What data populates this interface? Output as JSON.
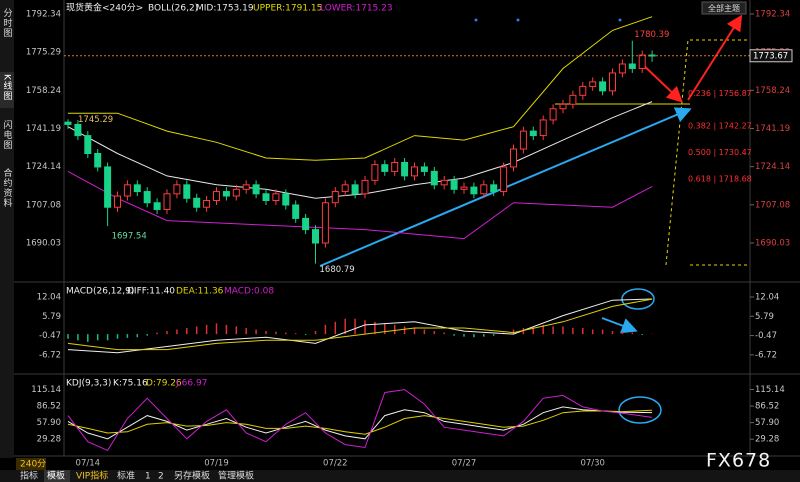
{
  "sidebar": [
    "分时图",
    "K线图",
    "闪电图",
    "合约资料"
  ],
  "period": "240分",
  "toolbar": [
    "指标",
    "模板",
    "VIP指标",
    "标准",
    "1",
    "2",
    "另存模板",
    "管理模板"
  ],
  "theme_button": "全部主题",
  "watermark": "FX678",
  "chart_data": [
    {
      "type": "candlestick",
      "title": "现货黄金<240分>",
      "indicator": "BOLL(26,2)",
      "categories": [
        null,
        null,
        "07/14",
        null,
        null,
        null,
        null,
        null,
        null,
        null,
        null,
        null,
        null,
        null,
        null,
        "07/19",
        null,
        null,
        null,
        null,
        null,
        null,
        null,
        null,
        null,
        null,
        null,
        "07/22",
        null,
        null,
        null,
        null,
        null,
        null,
        null,
        null,
        null,
        null,
        null,
        null,
        "07/27",
        null,
        null,
        null,
        null,
        null,
        null,
        null,
        null,
        null,
        null,
        null,
        null,
        "07/30",
        null,
        null,
        null,
        null,
        null,
        null
      ],
      "open": [
        1744,
        1743,
        1738,
        1730,
        1724,
        1706,
        1711,
        1716,
        1713,
        1708,
        1705,
        1712,
        1716,
        1710,
        1706,
        1709,
        1713,
        1711,
        1714,
        1716,
        1712,
        1709,
        1712,
        1707,
        1701,
        1696,
        1690,
        1708,
        1713,
        1716,
        1712,
        1718,
        1725,
        1722,
        1726,
        1720,
        1724,
        1722,
        1716,
        1718,
        1714,
        1715,
        1712,
        1716,
        1713,
        1724,
        1732,
        1740,
        1738,
        1745,
        1750,
        1752,
        1756,
        1760,
        1762,
        1758,
        1766,
        1770,
        1768,
        1774
      ],
      "high": [
        1745.29,
        1745,
        1740,
        1732,
        1726,
        1713,
        1718,
        1718,
        1715,
        1710,
        1714,
        1718,
        1718,
        1712,
        1711,
        1715,
        1715,
        1716,
        1718,
        1718,
        1714,
        1714,
        1714,
        1709,
        1703,
        1698,
        1710,
        1715,
        1718,
        1718,
        1720,
        1727,
        1727,
        1728,
        1728,
        1726,
        1726,
        1724,
        1720,
        1720,
        1717,
        1717,
        1718,
        1718,
        1726,
        1734,
        1742,
        1742,
        1747,
        1752,
        1754,
        1758,
        1762,
        1764,
        1764,
        1768,
        1772,
        1780.39,
        1776,
        1776
      ],
      "low": [
        1741,
        1736,
        1728,
        1722,
        1697.54,
        1704,
        1709,
        1711,
        1706,
        1703,
        1703,
        1710,
        1708,
        1704,
        1704,
        1707,
        1709,
        1709,
        1712,
        1710,
        1707,
        1707,
        1705,
        1699,
        1694,
        1680.79,
        1688,
        1706,
        1711,
        1710,
        1710,
        1716,
        1720,
        1720,
        1718,
        1718,
        1720,
        1714,
        1714,
        1712,
        1712,
        1710,
        1710,
        1711,
        1711,
        1722,
        1730,
        1736,
        1736,
        1743,
        1748,
        1750,
        1754,
        1758,
        1756,
        1756,
        1764,
        1766,
        1766,
        1771
      ],
      "close": [
        1743,
        1738,
        1730,
        1724,
        1706,
        1711,
        1716,
        1713,
        1708,
        1705,
        1712,
        1716,
        1710,
        1706,
        1709,
        1713,
        1711,
        1714,
        1716,
        1712,
        1709,
        1712,
        1707,
        1701,
        1696,
        1690,
        1708,
        1713,
        1716,
        1712,
        1718,
        1725,
        1722,
        1726,
        1720,
        1724,
        1722,
        1716,
        1718,
        1714,
        1715,
        1712,
        1716,
        1713,
        1724,
        1732,
        1740,
        1738,
        1745,
        1750,
        1752,
        1756,
        1760,
        1762,
        1758,
        1766,
        1770,
        1768,
        1774,
        1773.67
      ],
      "up_color": "#ff3b3b",
      "down_color": "#19d38a",
      "ylim": [
        1673.48,
        1797.25
      ],
      "yticks": [
        1792.34,
        1775.29,
        1758.24,
        1741.19,
        1724.14,
        1707.08,
        1690.03
      ],
      "x": [
        0,
        5,
        10,
        15,
        20,
        25,
        30,
        35,
        40,
        45,
        50,
        55,
        59
      ],
      "series": [
        {
          "label": "MID:1753.19",
          "color": "#e8e8e8",
          "values": [
            1742,
            1730,
            1720,
            1716,
            1714,
            1710,
            1712,
            1716,
            1719,
            1726,
            1736,
            1746,
            1753.19
          ]
        },
        {
          "label": "UPPER:1791.15",
          "color": "#e0d800",
          "values": [
            1748,
            1748,
            1740,
            1735,
            1728,
            1727,
            1728,
            1738,
            1736,
            1742,
            1768,
            1785,
            1791.15
          ]
        },
        {
          "label": "LOWER:1715.23",
          "color": "#d020d0",
          "values": [
            1722,
            1710,
            1700,
            1699,
            1698,
            1697,
            1696,
            1694,
            1692,
            1708,
            1707,
            1706,
            1715.23
          ]
        }
      ],
      "fib_levels": [
        {
          "value": 1756.87,
          "label": "0.236 | 1756.87"
        },
        {
          "value": 1742.27,
          "label": "0.382 | 1742.27"
        },
        {
          "value": 1730.47,
          "label": "0.500 | 1730.47"
        },
        {
          "value": 1718.68,
          "label": "0.618 | 1718.68"
        }
      ]
    },
    {
      "type": "macd",
      "title": "MACD(26,12,9)",
      "ylim": [
        -12.27,
        15.6
      ],
      "yticks": [
        12.04,
        5.79,
        -0.47,
        -6.72
      ],
      "histogram": {
        "label": "MACD:0.08",
        "up_color": "#e03030",
        "down_color": "#19c080",
        "values": [
          -1.5,
          -2,
          -2.5,
          -2,
          -2,
          -1.5,
          -1.2,
          -1,
          -0.5,
          0.5,
          1,
          1.5,
          2,
          2.5,
          3,
          3.5,
          3,
          2.5,
          2,
          1.5,
          1,
          0.8,
          0.5,
          0.3,
          -0.3,
          1,
          3,
          4,
          5,
          5,
          4.5,
          4,
          3.5,
          3,
          2.5,
          2,
          1.5,
          1,
          0.5,
          -0.5,
          -0.8,
          -1,
          -0.8,
          -0.5,
          0.5,
          1.5,
          2,
          2.5,
          3,
          2.5,
          2.5,
          2,
          2,
          1.5,
          1.5,
          1,
          0.8,
          0.5,
          -0.3,
          0.08
        ]
      },
      "x": [
        0,
        5,
        10,
        15,
        20,
        25,
        30,
        35,
        40,
        45,
        50,
        55,
        59
      ],
      "series": [
        {
          "label": "DIFF:11.40",
          "color": "#f0f0f0",
          "values": [
            -5,
            -6,
            -4,
            -2,
            -1,
            -3,
            3,
            4,
            1,
            0,
            6,
            11,
            11.4
          ]
        },
        {
          "label": "DEA:11.36",
          "color": "#e0d000",
          "values": [
            -3,
            -5,
            -5,
            -3,
            -2,
            -2,
            0,
            2,
            2,
            0.5,
            4,
            9,
            11.36
          ]
        }
      ]
    },
    {
      "type": "kdj",
      "title": "KDJ(9,3,3)",
      "ylim": [
        2,
        135
      ],
      "yticks": [
        115.14,
        86.52,
        {
          "value": 57.9,
          "label": "57.90"
        },
        29.28
      ],
      "x": [
        0,
        2,
        4,
        6,
        8,
        10,
        12,
        14,
        16,
        18,
        20,
        22,
        24,
        26,
        28,
        30,
        32,
        34,
        36,
        38,
        40,
        42,
        44,
        46,
        48,
        50,
        52,
        54,
        56,
        59
      ],
      "series": [
        {
          "label": "K:75.16",
          "color": "#f0f0f0",
          "values": [
            60,
            40,
            30,
            50,
            70,
            60,
            45,
            55,
            65,
            50,
            40,
            50,
            60,
            45,
            35,
            30,
            70,
            80,
            75,
            60,
            55,
            50,
            45,
            55,
            75,
            85,
            80,
            78,
            76,
            75.16
          ]
        },
        {
          "label": "D:79.26",
          "color": "#e0d000",
          "values": [
            55,
            48,
            40,
            42,
            55,
            58,
            52,
            53,
            58,
            55,
            48,
            48,
            52,
            48,
            42,
            38,
            50,
            65,
            70,
            65,
            60,
            55,
            50,
            52,
            62,
            75,
            78,
            78,
            77,
            79.26
          ]
        },
        {
          "label": "J:66.97",
          "color": "#d020d0",
          "values": [
            70,
            25,
            10,
            65,
            100,
            65,
            30,
            60,
            80,
            40,
            25,
            55,
            75,
            40,
            20,
            15,
            110,
            115,
            90,
            50,
            45,
            40,
            35,
            60,
            100,
            105,
            85,
            78,
            74,
            66.97
          ]
        }
      ]
    }
  ]
}
